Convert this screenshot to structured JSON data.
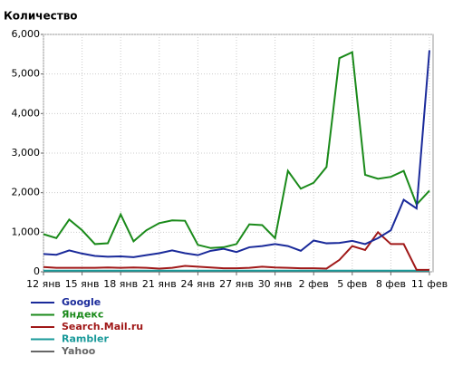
{
  "chart_data": {
    "type": "line",
    "title": "Количество",
    "categories": [
      "12 янв",
      null,
      null,
      "15 янв",
      null,
      null,
      "18 янв",
      null,
      null,
      "21 янв",
      null,
      null,
      "24 янв",
      null,
      null,
      "27 янв",
      null,
      null,
      "30 янв",
      null,
      null,
      "2 фев",
      null,
      null,
      "5 фев",
      null,
      null,
      "8 фев",
      null,
      null,
      "11 фев"
    ],
    "ylim": [
      0,
      6000
    ],
    "yticks": [
      0,
      {
        "value": 1000,
        "label": "1,000"
      },
      {
        "value": 2000,
        "label": "2,000"
      },
      {
        "value": 3000,
        "label": "3,000"
      },
      {
        "value": 4000,
        "label": "4,000"
      },
      {
        "value": 5000,
        "label": "5,000"
      },
      {
        "value": 6000,
        "label": "6,000"
      }
    ],
    "grid": true,
    "series": [
      {
        "name": "Google",
        "color": "#1a2a9a",
        "values": [
          450,
          430,
          540,
          460,
          400,
          380,
          390,
          370,
          420,
          470,
          540,
          470,
          420,
          530,
          580,
          500,
          620,
          650,
          700,
          650,
          530,
          790,
          720,
          730,
          780,
          700,
          850,
          1050,
          1820,
          1600,
          5600
        ]
      },
      {
        "name": "Яндекс",
        "color": "#1a8a1a",
        "values": [
          950,
          850,
          1320,
          1050,
          700,
          720,
          1450,
          770,
          1050,
          1230,
          1300,
          1290,
          680,
          600,
          620,
          700,
          1200,
          1180,
          850,
          2550,
          2100,
          2250,
          2650,
          5400,
          5550,
          2450,
          2350,
          2400,
          2550,
          1700,
          2050
        ]
      },
      {
        "name": "Search.Mail.ru",
        "color": "#a01818",
        "values": [
          120,
          100,
          100,
          100,
          100,
          110,
          100,
          110,
          100,
          80,
          100,
          150,
          130,
          110,
          90,
          90,
          100,
          130,
          110,
          100,
          90,
          90,
          80,
          300,
          650,
          550,
          1000,
          700,
          700,
          50,
          50
        ]
      },
      {
        "name": "Rambler",
        "color": "#1a9a9a",
        "values": [
          30,
          30,
          30,
          30,
          30,
          30,
          30,
          30,
          30,
          30,
          30,
          30,
          30,
          30,
          30,
          30,
          30,
          30,
          30,
          30,
          30,
          30,
          30,
          30,
          30,
          30,
          30,
          30,
          30,
          30,
          30
        ]
      },
      {
        "name": "Yahoo",
        "color": "#666666",
        "values": [
          10,
          10,
          10,
          10,
          10,
          10,
          10,
          10,
          10,
          10,
          10,
          10,
          10,
          10,
          10,
          10,
          10,
          10,
          10,
          10,
          10,
          10,
          10,
          10,
          10,
          10,
          10,
          10,
          10,
          10,
          10
        ]
      }
    ]
  }
}
